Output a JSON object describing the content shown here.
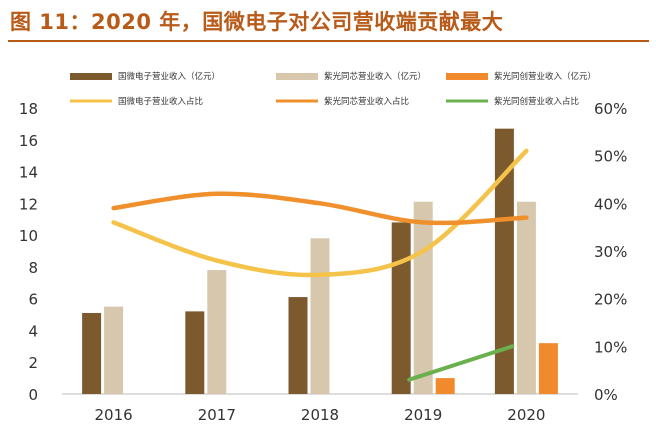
{
  "figure": {
    "title": "图 11：2020 年，国微电子对公司营收端贡献最大"
  },
  "chart_data": {
    "type": "bar",
    "categories": [
      "2016",
      "2017",
      "2018",
      "2019",
      "2020"
    ],
    "y_left": {
      "ticks": [
        "0",
        "2",
        "4",
        "6",
        "8",
        "10",
        "12",
        "14",
        "16",
        "18"
      ],
      "range": [
        0,
        18
      ]
    },
    "y_right": {
      "ticks": [
        "0%",
        "10%",
        "20%",
        "30%",
        "40%",
        "50%",
        "60%"
      ],
      "range": [
        0,
        60
      ]
    },
    "series_bars": [
      {
        "name": "国微电子营业收入（亿元）",
        "color": "#7d5a2e",
        "values": [
          5.1,
          5.2,
          6.1,
          10.8,
          16.7
        ]
      },
      {
        "name": "紫光同芯营业收入（亿元）",
        "color": "#d6c7ad",
        "values": [
          5.5,
          7.8,
          9.8,
          12.1,
          12.1
        ]
      },
      {
        "name": "紫光同创营业收入（亿元）",
        "color": "#f08a2c",
        "values": [
          null,
          null,
          null,
          1.0,
          3.2
        ]
      }
    ],
    "series_lines": [
      {
        "name": "国微电子营业收入占比",
        "color": "#f5c24a",
        "values": [
          36,
          28,
          25,
          30,
          51
        ]
      },
      {
        "name": "紫光同芯营业收入占比",
        "color": "#f0902c",
        "values": [
          39,
          42,
          40,
          36,
          37
        ]
      },
      {
        "name": "紫光同创营业收入占比",
        "color": "#6ab04c",
        "values": [
          null,
          null,
          null,
          3,
          10
        ]
      }
    ],
    "legend_position": "top",
    "grid": false
  }
}
